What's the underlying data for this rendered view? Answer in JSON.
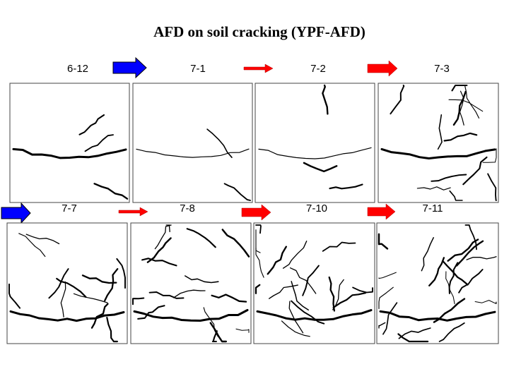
{
  "header": {
    "title": "AFD on soil cracking (YPF-AFD)"
  },
  "panels": [
    {
      "label": "6-12"
    },
    {
      "label": "7-1"
    },
    {
      "label": "7-2"
    },
    {
      "label": "7-3"
    },
    {
      "label": "7-7"
    },
    {
      "label": "7-8"
    },
    {
      "label": "7-10"
    },
    {
      "label": "7-11"
    }
  ]
}
